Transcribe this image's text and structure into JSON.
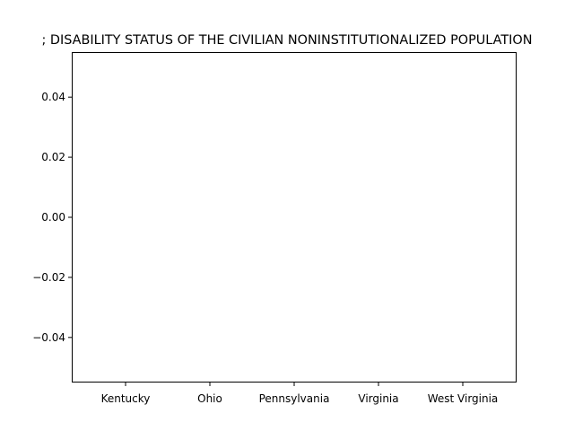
{
  "chart_data": {
    "type": "bar",
    "title": "; DISABILITY STATUS OF THE CIVILIAN NONINSTITUTIONALIZED POPULATION",
    "categories": [
      "Kentucky",
      "Ohio",
      "Pennsylvania",
      "Virginia",
      "West Virginia"
    ],
    "values": [
      null,
      null,
      null,
      null,
      null
    ],
    "xlabel": "",
    "ylabel": "",
    "ylim": [
      -0.055,
      0.055
    ],
    "yticks": [
      "0.04",
      "0.02",
      "0.00",
      "−0.02",
      "−0.04"
    ],
    "grid": false,
    "legend": "none"
  }
}
